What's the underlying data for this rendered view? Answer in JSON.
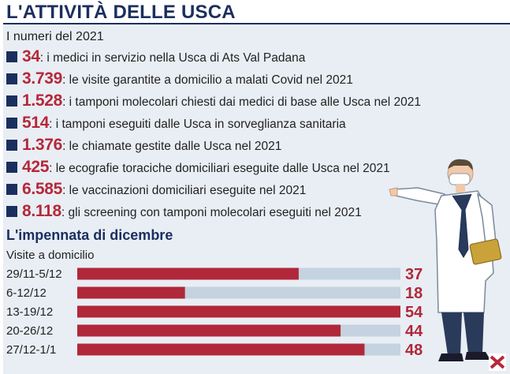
{
  "header": {
    "title": "L'ATTIVITÀ DELLE USCA",
    "subtitle": "I numeri del 2021"
  },
  "stats": [
    {
      "value": "34",
      "text": ": i medici in servizio nella Usca di Ats Val Padana"
    },
    {
      "value": "3.739",
      "text": ": le visite garantite a domicilio a malati Covid nel 2021"
    },
    {
      "value": "1.528",
      "text": ": i tamponi molecolari chiesti dai medici di base alle Usca nel 2021"
    },
    {
      "value": "514",
      "text": ": i tamponi eseguiti dalle Usca in sorveglianza sanitaria"
    },
    {
      "value": "1.376",
      "text": ": le chiamate gestite dalle Usca nel 2021"
    },
    {
      "value": "425",
      "text": ": le ecografie toraciche domiciliari eseguite dalle Usca nel 2021"
    },
    {
      "value": "6.585",
      "text": ": le vaccinazioni domiciliari eseguite nel 2021"
    },
    {
      "value": "8.118",
      "text": ": gli screening con tamponi molecolari eseguiti nel 2021"
    }
  ],
  "section": {
    "title": "L'impennata di dicembre",
    "subtitle": "Visite a domicilio"
  },
  "chart_data": {
    "type": "bar",
    "orientation": "horizontal",
    "categories": [
      "29/11-5/12",
      "6-12/12",
      "13-19/12",
      "20-26/12",
      "27/12-1/1"
    ],
    "values": [
      37,
      18,
      54,
      44,
      48
    ],
    "xlim": [
      0,
      54
    ],
    "grid": false,
    "bar_color": "#b0283a",
    "track_color": "#c4d3df",
    "value_label_color": "#b0283a"
  },
  "colors": {
    "accent": "#b5283a",
    "navy": "#1b2f5e",
    "panel": "#e9eef4"
  },
  "icons": {
    "bullet": "square-bullet-icon",
    "doctor": "doctor-illustration",
    "logo": "publisher-logo-icon"
  }
}
